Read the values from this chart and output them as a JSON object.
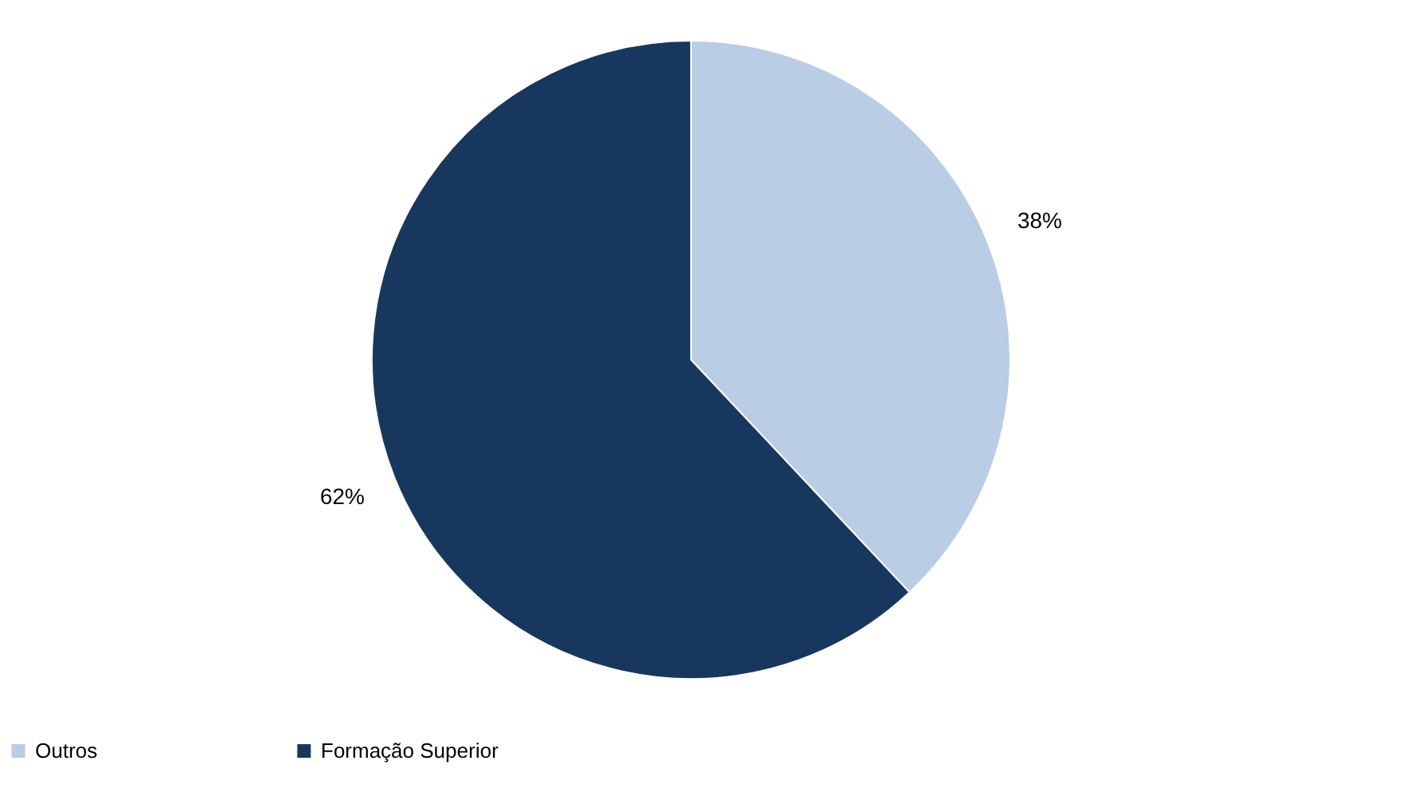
{
  "chart_data": {
    "type": "pie",
    "categories": [
      "Outros",
      "Formação Superior"
    ],
    "values": [
      38,
      62
    ],
    "colors": [
      "#b9cde5",
      "#17375e"
    ],
    "value_labels": [
      "38%",
      "62%"
    ],
    "legend": "bottom"
  }
}
